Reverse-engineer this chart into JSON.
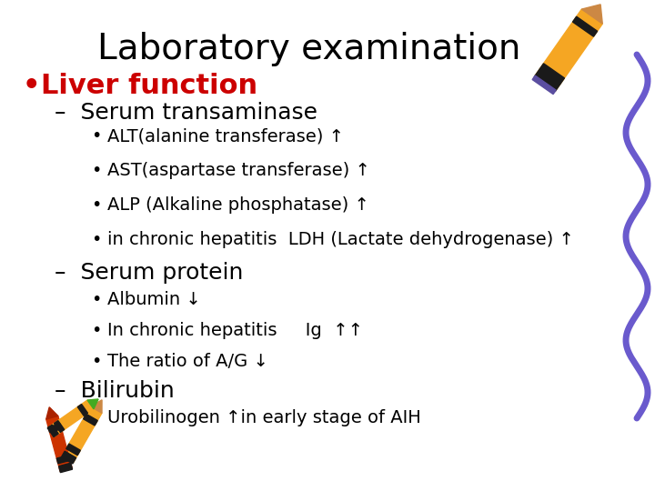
{
  "title": "Laboratory examination",
  "title_fontsize": 28,
  "title_color": "#000000",
  "bg_color": "#ffffff",
  "bullet1": "Liver function",
  "bullet1_color": "#cc0000",
  "bullet1_fontsize": 22,
  "dash1": "Serum transaminase",
  "dash_fontsize": 18,
  "dash_color": "#000000",
  "sub1": [
    "ALT(alanine transferase) ↑",
    "AST(aspartase transferase) ↑",
    "ALP (Alkaline phosphatase) ↑",
    "in chronic hepatitis  LDH (Lactate dehydrogenase) ↑"
  ],
  "sub_fontsize": 14,
  "sub_color": "#000000",
  "dash2": "Serum protein",
  "sub2": [
    "Albumin ↓",
    "In chronic hepatitis     Ig  ↑↑",
    "The ratio of A/G ↓"
  ],
  "dash3": "Bilirubin",
  "sub3": [
    "Urobilinogen ↑in early stage of AIH"
  ],
  "font_family": "Comic Sans MS",
  "squiggle_color": "#6a5acd",
  "crayon_yellow": "#f5a623",
  "crayon_black": "#1a1a1a",
  "crayon_purple": "#5b4ea0",
  "crayon_tip": "#cc8844"
}
